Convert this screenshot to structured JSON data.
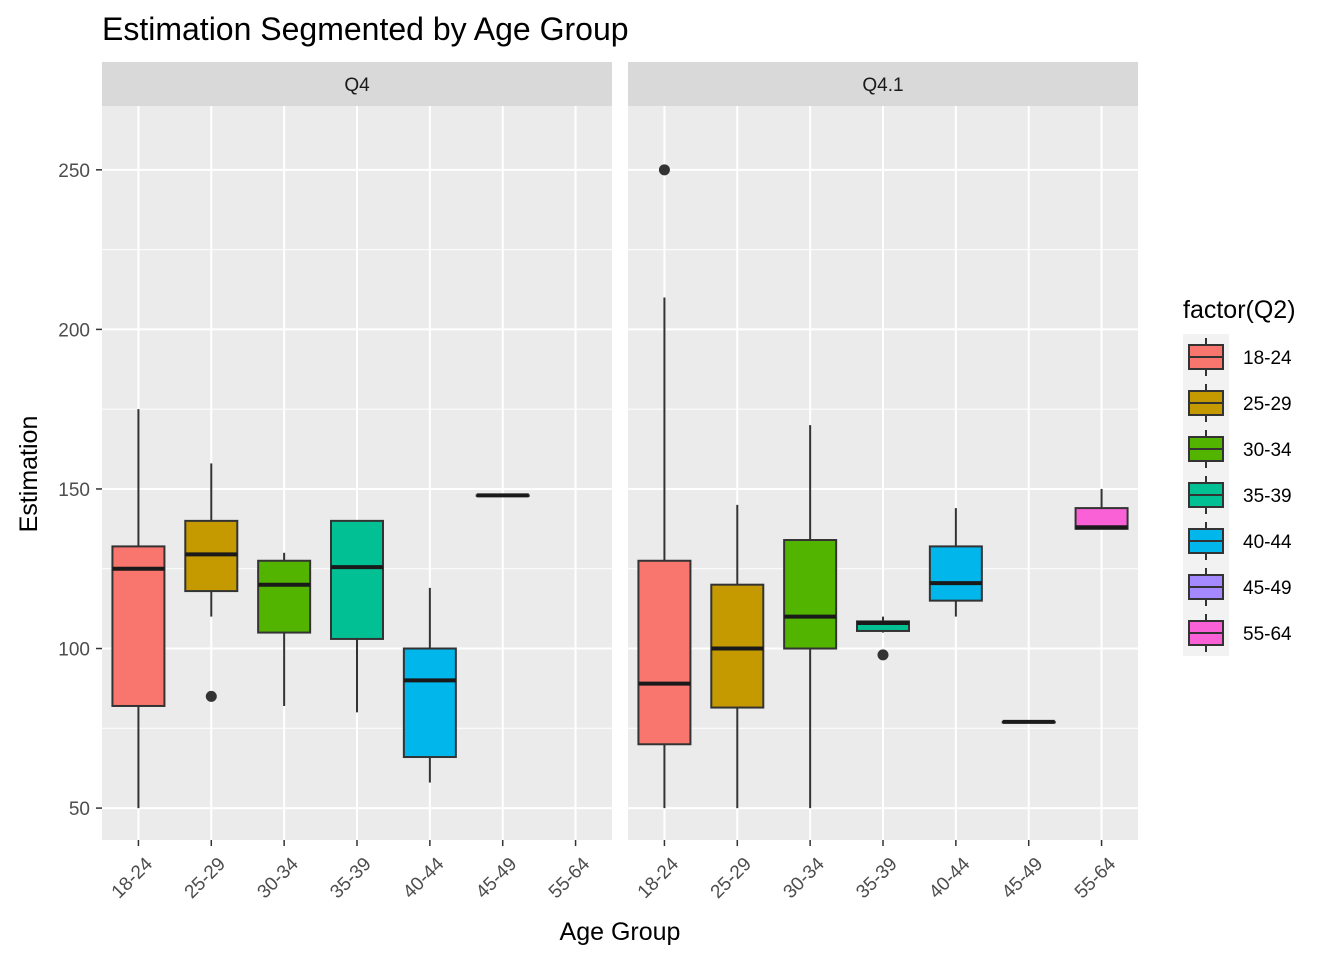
{
  "chart_data": {
    "type": "box",
    "title": "Estimation Segmented by Age Group",
    "xlabel": "Age Group",
    "ylabel": "Estimation",
    "ylim": [
      40,
      270
    ],
    "y_ticks": [
      50,
      100,
      150,
      200,
      250
    ],
    "categories": [
      "18-24",
      "25-29",
      "30-34",
      "35-39",
      "40-44",
      "45-49",
      "55-64"
    ],
    "grid": true,
    "legend": {
      "title": "factor(Q2)",
      "position": "right",
      "entries": [
        "18-24",
        "25-29",
        "30-34",
        "35-39",
        "40-44",
        "45-49",
        "55-64"
      ]
    },
    "colors": {
      "18-24": "#F8766D",
      "25-29": "#C49A00",
      "30-34": "#53B400",
      "35-39": "#00C094",
      "40-44": "#00B6EB",
      "45-49": "#A58AFF",
      "55-64": "#FB61D7"
    },
    "panels": [
      {
        "label": "Q4",
        "boxes": [
          {
            "group": "18-24",
            "whisker_low": 50,
            "q1": 82,
            "median": 125,
            "q3": 132,
            "whisker_high": 175,
            "outliers": []
          },
          {
            "group": "25-29",
            "whisker_low": 110,
            "q1": 118,
            "median": 129.5,
            "q3": 140,
            "whisker_high": 158,
            "outliers": [
              85
            ]
          },
          {
            "group": "30-34",
            "whisker_low": 82,
            "q1": 105,
            "median": 120,
            "q3": 127.5,
            "whisker_high": 130,
            "outliers": []
          },
          {
            "group": "35-39",
            "whisker_low": 80,
            "q1": 103,
            "median": 125.5,
            "q3": 140,
            "whisker_high": 140,
            "outliers": []
          },
          {
            "group": "40-44",
            "whisker_low": 58,
            "q1": 66,
            "median": 90,
            "q3": 100,
            "whisker_high": 119,
            "outliers": []
          },
          {
            "group": "45-49",
            "whisker_low": 148,
            "q1": 148,
            "median": 148,
            "q3": 148,
            "whisker_high": 148,
            "outliers": []
          }
        ]
      },
      {
        "label": "Q4.1",
        "boxes": [
          {
            "group": "18-24",
            "whisker_low": 50,
            "q1": 70,
            "median": 89,
            "q3": 127.5,
            "whisker_high": 210,
            "outliers": [
              250
            ]
          },
          {
            "group": "25-29",
            "whisker_low": 50,
            "q1": 81.5,
            "median": 100,
            "q3": 120,
            "whisker_high": 145,
            "outliers": []
          },
          {
            "group": "30-34",
            "whisker_low": 50,
            "q1": 100,
            "median": 110,
            "q3": 134,
            "whisker_high": 170,
            "outliers": []
          },
          {
            "group": "35-39",
            "whisker_low": 105,
            "q1": 105.5,
            "median": 108,
            "q3": 108.5,
            "whisker_high": 110,
            "outliers": [
              98
            ]
          },
          {
            "group": "40-44",
            "whisker_low": 110,
            "q1": 115,
            "median": 120.5,
            "q3": 132,
            "whisker_high": 144,
            "outliers": []
          },
          {
            "group": "45-49",
            "whisker_low": 77,
            "q1": 77,
            "median": 77,
            "q3": 77,
            "whisker_high": 77,
            "outliers": []
          },
          {
            "group": "55-64",
            "whisker_low": 137.5,
            "q1": 137.5,
            "median": 138,
            "q3": 144,
            "whisker_high": 150,
            "outliers": []
          }
        ]
      }
    ]
  }
}
